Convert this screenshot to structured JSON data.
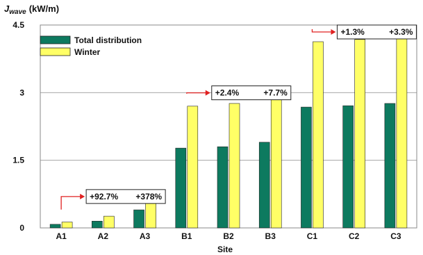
{
  "chart_data": {
    "type": "bar",
    "ylabel_main": "J",
    "ylabel_sub": "wave",
    "ylabel_unit": "(kW/m)",
    "xlabel": "Site",
    "ylim": [
      0,
      4.5
    ],
    "yticks": [
      "0",
      "1.5",
      "3",
      "4.5"
    ],
    "ytick_values": [
      0,
      1.5,
      3,
      4.5
    ],
    "grid": true,
    "legend_position": "top-left",
    "categories": [
      "A1",
      "A2",
      "A3",
      "B1",
      "B2",
      "B3",
      "C1",
      "C2",
      "C3"
    ],
    "series": [
      {
        "name": "Total distribution",
        "color": "#0d7a5f",
        "values": [
          0.08,
          0.15,
          0.4,
          1.77,
          1.8,
          1.9,
          2.68,
          2.71,
          2.76
        ]
      },
      {
        "name": "Winter",
        "color": "#ffff66",
        "values": [
          0.13,
          0.26,
          0.63,
          2.7,
          2.76,
          2.92,
          4.13,
          4.18,
          4.24
        ]
      }
    ],
    "annotations": [
      {
        "texts": [
          "+92.7%",
          "+378%"
        ],
        "from_category": 0,
        "at_value": 0.85
      },
      {
        "texts": [
          "+2.4%",
          "+7.7%"
        ],
        "from_category": 3,
        "at_value": 3.15
      },
      {
        "texts": [
          "+1.3%",
          "+3.3%"
        ],
        "from_category": 6,
        "at_value": 4.5
      }
    ]
  }
}
